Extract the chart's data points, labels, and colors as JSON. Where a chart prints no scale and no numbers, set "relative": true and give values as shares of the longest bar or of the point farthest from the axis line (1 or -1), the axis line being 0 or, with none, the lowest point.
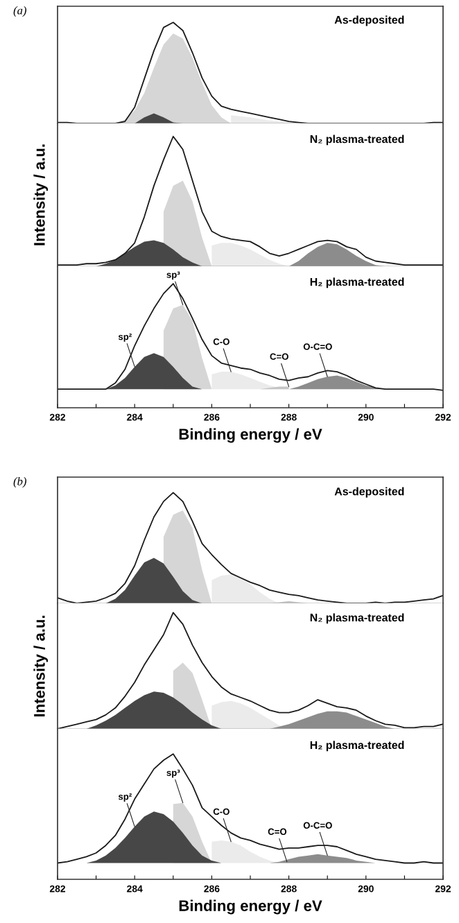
{
  "chart_data": [
    {
      "type": "area",
      "title": "As-deposited",
      "relative": true,
      "annotations": [
        "(a)"
      ],
      "xlim": [
        282,
        292
      ],
      "tick_labels": false,
      "grid": false,
      "legend": false,
      "series": [
        {
          "color": "#ebebeb",
          "x": [
            286.5,
            287,
            287.5,
            288,
            288.5
          ],
          "values": [
            0.08,
            0.06,
            0.03,
            0.01,
            0
          ]
        },
        {
          "color": "#d6d6d6",
          "x": [
            283.5,
            283.75,
            284,
            284.25,
            284.5,
            284.75,
            285,
            285.25,
            285.5,
            285.75,
            286,
            286.25,
            286.5
          ],
          "values": [
            0,
            0.04,
            0.13,
            0.3,
            0.55,
            0.78,
            0.89,
            0.84,
            0.65,
            0.4,
            0.18,
            0.06,
            0
          ]
        },
        {
          "color": "#474747",
          "x": [
            284,
            284.25,
            284.5,
            284.75,
            285,
            285.25
          ],
          "values": [
            0,
            0.06,
            0.1,
            0.06,
            0.01,
            0
          ]
        },
        {
          "type": "line",
          "color": "#1a1a1a",
          "x": [
            282,
            282.25,
            282.5,
            282.75,
            283,
            283.25,
            283.5,
            283.75,
            284,
            284.25,
            284.5,
            284.75,
            285,
            285.25,
            285.5,
            285.75,
            286,
            286.25,
            286.5,
            286.75,
            287,
            287.25,
            287.5,
            287.75,
            288,
            288.25,
            288.5,
            288.75,
            289,
            289.25,
            289.5,
            289.75,
            290,
            290.25,
            290.5,
            290.75,
            291,
            291.25,
            291.5,
            291.75,
            292
          ],
          "values": [
            0.01,
            0.01,
            0,
            0,
            0,
            0,
            0,
            0.02,
            0.16,
            0.44,
            0.72,
            0.95,
            1.0,
            0.92,
            0.7,
            0.45,
            0.27,
            0.17,
            0.14,
            0.12,
            0.1,
            0.08,
            0.06,
            0.04,
            0.02,
            0.01,
            0,
            0,
            0,
            0,
            0,
            0,
            0,
            0,
            0,
            0,
            0,
            0,
            0,
            0.01,
            0.01
          ]
        }
      ]
    },
    {
      "type": "area",
      "title": "N₂ plasma-treated",
      "ylabel": "Intensity / a.u.",
      "relative": true,
      "xlim": [
        282,
        292
      ],
      "tick_labels": false,
      "grid": false,
      "legend": false,
      "series": [
        {
          "color": "#ebebeb",
          "x": [
            286,
            286.25,
            286.5,
            286.75,
            287,
            287.25,
            287.5,
            287.75,
            288
          ],
          "values": [
            0.16,
            0.18,
            0.18,
            0.16,
            0.13,
            0.09,
            0.05,
            0.02,
            0
          ]
        },
        {
          "color": "#8c8c8c",
          "x": [
            288,
            288.25,
            288.5,
            288.75,
            289,
            289.25,
            289.5,
            289.75,
            290,
            290.25,
            290.5
          ],
          "values": [
            0,
            0.04,
            0.1,
            0.15,
            0.18,
            0.17,
            0.13,
            0.08,
            0.04,
            0.01,
            0
          ]
        },
        {
          "color": "#d6d6d6",
          "x": [
            284.75,
            285,
            285.25,
            285.5,
            285.75,
            286
          ],
          "values": [
            0.42,
            0.62,
            0.66,
            0.5,
            0.22,
            0
          ]
        },
        {
          "color": "#474747",
          "x": [
            283,
            283.25,
            283.5,
            283.75,
            284,
            284.25,
            284.5,
            284.75,
            285,
            285.25,
            285.5,
            285.75
          ],
          "values": [
            0,
            0.02,
            0.05,
            0.1,
            0.15,
            0.19,
            0.2,
            0.18,
            0.13,
            0.07,
            0.03,
            0
          ]
        },
        {
          "type": "line",
          "color": "#1a1a1a",
          "x": [
            282,
            282.25,
            282.5,
            282.75,
            283,
            283.25,
            283.5,
            283.75,
            284,
            284.25,
            284.5,
            284.75,
            285,
            285.25,
            285.5,
            285.75,
            286,
            286.25,
            286.5,
            286.75,
            287,
            287.25,
            287.5,
            287.75,
            288,
            288.25,
            288.5,
            288.75,
            289,
            289.25,
            289.5,
            289.75,
            290,
            290.25,
            290.5,
            290.75,
            291,
            291.25,
            291.5,
            291.75,
            292
          ],
          "values": [
            0.01,
            0.01,
            0.01,
            0.02,
            0.02,
            0.03,
            0.05,
            0.1,
            0.18,
            0.38,
            0.62,
            0.82,
            1.0,
            0.9,
            0.66,
            0.42,
            0.27,
            0.23,
            0.21,
            0.2,
            0.19,
            0.15,
            0.1,
            0.08,
            0.1,
            0.13,
            0.16,
            0.19,
            0.2,
            0.19,
            0.15,
            0.13,
            0.07,
            0.04,
            0.03,
            0.02,
            0.01,
            0.01,
            0.01,
            0.01,
            0.01
          ]
        }
      ]
    },
    {
      "type": "area",
      "title": "H₂ plasma-treated",
      "xlabel": "Binding energy / eV",
      "relative": true,
      "xlim": [
        282,
        292
      ],
      "xticks": [
        282,
        {
          "value": 283,
          "label": null
        },
        284,
        {
          "value": 285,
          "label": null
        },
        286,
        {
          "value": 287,
          "label": null
        },
        288,
        {
          "value": 289,
          "label": null
        },
        290,
        {
          "value": 291,
          "label": null
        },
        292
      ],
      "tick_labels": "x",
      "grid": false,
      "legend": false,
      "annotations": [
        {
          "text": "sp²",
          "x": 284.0,
          "y": 0.33
        },
        {
          "text": "sp³",
          "x": 285.25,
          "y": 0.83
        },
        {
          "text": "C-O",
          "x": 286.5,
          "y": 0.29
        },
        {
          "text": "C=O",
          "x": 288.0,
          "y": 0.17
        },
        {
          "text": "O-C=O",
          "x": 289.0,
          "y": 0.25
        }
      ],
      "series": [
        {
          "color": "#ebebeb",
          "x": [
            286,
            286.25,
            286.5,
            286.75,
            287,
            287.25,
            287.5,
            287.75,
            288
          ],
          "values": [
            0.27,
            0.29,
            0.29,
            0.27,
            0.24,
            0.21,
            0.18,
            0.16,
            0.15
          ]
        },
        {
          "color": "#c4c4c4",
          "x": [
            287.25,
            287.5,
            287.75,
            288
          ],
          "values": [
            0.15,
            0.16,
            0.17,
            0.17
          ]
        },
        {
          "color": "#8c8c8c",
          "x": [
            288,
            288.25,
            288.5,
            288.75,
            289,
            289.25,
            289.5,
            289.75,
            290,
            290.25,
            290.5
          ],
          "values": [
            0.15,
            0.17,
            0.2,
            0.23,
            0.25,
            0.26,
            0.24,
            0.21,
            0.18,
            0.16,
            0.15
          ]
        },
        {
          "color": "#d6d6d6",
          "x": [
            284.75,
            285,
            285.25,
            285.5,
            285.75,
            286
          ],
          "values": [
            0.62,
            0.8,
            0.83,
            0.7,
            0.4,
            0.15
          ]
        },
        {
          "color": "#474747",
          "x": [
            283.25,
            283.5,
            283.75,
            284,
            284.25,
            284.5,
            284.75,
            285,
            285.25,
            285.5,
            285.75
          ],
          "values": [
            0.15,
            0.18,
            0.24,
            0.33,
            0.41,
            0.44,
            0.41,
            0.33,
            0.24,
            0.17,
            0.15
          ]
        },
        {
          "type": "line",
          "color": "#1a1a1a",
          "x": [
            282,
            282.25,
            282.5,
            282.75,
            283,
            283.25,
            283.5,
            283.75,
            284,
            284.25,
            284.5,
            284.75,
            285,
            285.25,
            285.5,
            285.75,
            286,
            286.25,
            286.5,
            286.75,
            287,
            287.25,
            287.5,
            287.75,
            288,
            288.25,
            288.5,
            288.75,
            289,
            289.25,
            289.5,
            289.75,
            290,
            290.25,
            290.5,
            290.75,
            291,
            291.25,
            291.5,
            291.75,
            292
          ],
          "values": [
            0.15,
            0.15,
            0.15,
            0.15,
            0.15,
            0.15,
            0.2,
            0.31,
            0.5,
            0.66,
            0.8,
            0.92,
            1.0,
            0.88,
            0.72,
            0.55,
            0.42,
            0.36,
            0.34,
            0.32,
            0.31,
            0.28,
            0.26,
            0.23,
            0.22,
            0.24,
            0.25,
            0.28,
            0.3,
            0.29,
            0.26,
            0.22,
            0.19,
            0.16,
            0.15,
            0.15,
            0.15,
            0.15,
            0.15,
            0.15,
            0.14
          ]
        }
      ]
    },
    {
      "type": "area",
      "title": "As-deposited",
      "relative": true,
      "annotations": [
        "(b)"
      ],
      "xlim": [
        282,
        292
      ],
      "tick_labels": false,
      "grid": false,
      "legend": false,
      "series": [
        {
          "color": "#ebebeb",
          "x": [
            286,
            286.25,
            286.5,
            286.75,
            287,
            287.25,
            287.5,
            287.75
          ],
          "values": [
            0.21,
            0.25,
            0.26,
            0.23,
            0.17,
            0.1,
            0.04,
            0
          ]
        },
        {
          "color": "#c4c4c4",
          "x": [
            287.5,
            287.75,
            288,
            288.25,
            288.5
          ],
          "values": [
            0,
            0.01,
            0.02,
            0.01,
            0
          ]
        },
        {
          "color": "#d6d6d6",
          "x": [
            284.75,
            285,
            285.25,
            285.5,
            285.75,
            286
          ],
          "values": [
            0.6,
            0.8,
            0.84,
            0.68,
            0.3,
            0
          ]
        },
        {
          "color": "#474747",
          "x": [
            283.25,
            283.5,
            283.75,
            284,
            284.25,
            284.5,
            284.75,
            285,
            285.25,
            285.5,
            285.75
          ],
          "values": [
            0,
            0.04,
            0.12,
            0.25,
            0.37,
            0.41,
            0.36,
            0.24,
            0.11,
            0.03,
            0
          ]
        },
        {
          "type": "line",
          "color": "#1a1a1a",
          "x": [
            282,
            282.25,
            282.5,
            282.75,
            283,
            283.25,
            283.5,
            283.75,
            284,
            284.25,
            284.5,
            284.75,
            285,
            285.25,
            285.5,
            285.75,
            286,
            286.25,
            286.5,
            286.75,
            287,
            287.25,
            287.5,
            287.75,
            288,
            288.25,
            288.5,
            288.75,
            289,
            289.25,
            289.5,
            289.75,
            290,
            290.25,
            290.5,
            290.75,
            291,
            291.25,
            291.5,
            291.75,
            292
          ],
          "values": [
            0.05,
            0.02,
            0,
            0.01,
            0.02,
            0.05,
            0.09,
            0.18,
            0.34,
            0.57,
            0.78,
            0.92,
            1.0,
            0.92,
            0.74,
            0.54,
            0.44,
            0.35,
            0.27,
            0.23,
            0.19,
            0.16,
            0.12,
            0.1,
            0.08,
            0.07,
            0.05,
            0.03,
            0.02,
            0.01,
            0,
            0,
            0,
            0.01,
            0,
            0.01,
            0.01,
            0.02,
            0.03,
            0.04,
            0.07
          ]
        }
      ]
    },
    {
      "type": "area",
      "title": "N₂ plasma-treated",
      "ylabel": "Intensity / a.u.",
      "relative": true,
      "xlim": [
        282,
        292
      ],
      "tick_labels": false,
      "grid": false,
      "legend": false,
      "series": [
        {
          "color": "#ebebeb",
          "x": [
            286,
            286.25,
            286.5,
            286.75,
            287,
            287.25,
            287.5,
            287.75,
            288
          ],
          "values": [
            0.2,
            0.23,
            0.24,
            0.22,
            0.18,
            0.13,
            0.08,
            0.03,
            0
          ]
        },
        {
          "color": "#8c8c8c",
          "x": [
            287.5,
            287.75,
            288,
            288.25,
            288.5,
            288.75,
            289,
            289.25,
            289.5,
            289.75,
            290,
            290.25,
            290.5,
            290.75
          ],
          "values": [
            0,
            0.02,
            0.04,
            0.07,
            0.1,
            0.13,
            0.15,
            0.15,
            0.14,
            0.11,
            0.08,
            0.05,
            0.02,
            0
          ]
        },
        {
          "color": "#d6d6d6",
          "x": [
            285,
            285.25,
            285.5,
            285.75,
            286
          ],
          "values": [
            0.5,
            0.57,
            0.48,
            0.25,
            0
          ]
        },
        {
          "color": "#474747",
          "x": [
            282.75,
            283,
            283.25,
            283.5,
            283.75,
            284,
            284.25,
            284.5,
            284.75,
            285,
            285.25,
            285.5,
            285.75,
            286,
            286.25
          ],
          "values": [
            0,
            0.03,
            0.07,
            0.12,
            0.18,
            0.24,
            0.29,
            0.32,
            0.31,
            0.27,
            0.21,
            0.14,
            0.08,
            0.03,
            0
          ]
        },
        {
          "type": "line",
          "color": "#1a1a1a",
          "x": [
            282,
            282.25,
            282.5,
            282.75,
            283,
            283.25,
            283.5,
            283.75,
            284,
            284.25,
            284.5,
            284.75,
            285,
            285.25,
            285.5,
            285.75,
            286,
            286.25,
            286.5,
            286.75,
            287,
            287.25,
            287.5,
            287.75,
            288,
            288.25,
            288.5,
            288.75,
            289,
            289.25,
            289.5,
            289.75,
            290,
            290.25,
            290.5,
            290.75,
            291,
            291.25,
            291.5,
            291.75,
            292
          ],
          "values": [
            0,
            0.02,
            0.04,
            0.06,
            0.08,
            0.12,
            0.18,
            0.28,
            0.4,
            0.55,
            0.68,
            0.81,
            1.0,
            0.9,
            0.72,
            0.57,
            0.45,
            0.36,
            0.3,
            0.27,
            0.24,
            0.2,
            0.16,
            0.14,
            0.14,
            0.16,
            0.2,
            0.25,
            0.22,
            0.19,
            0.18,
            0.16,
            0.11,
            0.07,
            0.04,
            0.03,
            0.01,
            0.01,
            0.02,
            0.02,
            0.04
          ]
        }
      ]
    },
    {
      "type": "area",
      "title": "H₂ plasma-treated",
      "xlabel": "Binding energy / eV",
      "relative": true,
      "xlim": [
        282,
        292
      ],
      "xticks": [
        282,
        {
          "value": 283,
          "label": null
        },
        284,
        {
          "value": 285,
          "label": null
        },
        286,
        {
          "value": 287,
          "label": null
        },
        288,
        {
          "value": 289,
          "label": null
        },
        290,
        {
          "value": 291,
          "label": null
        },
        292
      ],
      "tick_labels": "x",
      "grid": false,
      "legend": false,
      "annotations": [
        {
          "text": "sp²",
          "x": 284.0,
          "y": 0.42
        },
        {
          "text": "sp³",
          "x": 285.25,
          "y": 0.61
        },
        {
          "text": "C-O",
          "x": 286.5,
          "y": 0.3
        },
        {
          "text": "C=O",
          "x": 287.95,
          "y": 0.14
        },
        {
          "text": "O-C=O",
          "x": 289.0,
          "y": 0.19
        }
      ],
      "series": [
        {
          "color": "#ebebeb",
          "x": [
            286,
            286.25,
            286.5,
            286.75,
            287,
            287.25,
            287.5,
            287.75
          ],
          "values": [
            0.3,
            0.31,
            0.3,
            0.27,
            0.22,
            0.18,
            0.15,
            0.13
          ]
        },
        {
          "color": "#8c8c8c",
          "x": [
            287.5,
            287.75,
            288,
            288.25,
            288.5,
            288.75,
            289,
            289.25,
            289.5,
            289.75,
            290,
            290.25,
            290.5
          ],
          "values": [
            0.13,
            0.14,
            0.16,
            0.18,
            0.19,
            0.2,
            0.19,
            0.18,
            0.17,
            0.15,
            0.14,
            0.13,
            0.13
          ]
        },
        {
          "color": "#d6d6d6",
          "x": [
            285,
            285.25,
            285.5,
            285.75,
            286
          ],
          "values": [
            0.6,
            0.61,
            0.5,
            0.3,
            0.13
          ]
        },
        {
          "color": "#474747",
          "x": [
            282.75,
            283,
            283.25,
            283.5,
            283.75,
            284,
            284.25,
            284.5,
            284.75,
            285,
            285.25,
            285.5,
            285.75,
            286,
            286.25
          ],
          "values": [
            0.13,
            0.15,
            0.19,
            0.25,
            0.33,
            0.42,
            0.5,
            0.54,
            0.52,
            0.46,
            0.37,
            0.27,
            0.19,
            0.15,
            0.13
          ]
        },
        {
          "type": "line",
          "color": "#1a1a1a",
          "x": [
            282,
            282.25,
            282.5,
            282.75,
            283,
            283.25,
            283.5,
            283.75,
            284,
            284.25,
            284.5,
            284.75,
            285,
            285.25,
            285.5,
            285.75,
            286,
            286.25,
            286.5,
            286.75,
            287,
            287.25,
            287.5,
            287.75,
            288,
            288.25,
            288.5,
            288.75,
            289,
            289.25,
            289.5,
            289.75,
            290,
            290.25,
            290.5,
            290.75,
            291,
            291.25,
            291.5,
            291.75,
            292
          ],
          "values": [
            0.13,
            0.14,
            0.16,
            0.18,
            0.21,
            0.27,
            0.35,
            0.48,
            0.64,
            0.76,
            0.88,
            0.95,
            1.0,
            0.88,
            0.75,
            0.57,
            0.5,
            0.43,
            0.37,
            0.33,
            0.31,
            0.28,
            0.26,
            0.24,
            0.25,
            0.25,
            0.26,
            0.27,
            0.27,
            0.26,
            0.23,
            0.2,
            0.18,
            0.16,
            0.15,
            0.14,
            0.13,
            0.13,
            0.14,
            0.13,
            0.13
          ]
        }
      ]
    }
  ]
}
